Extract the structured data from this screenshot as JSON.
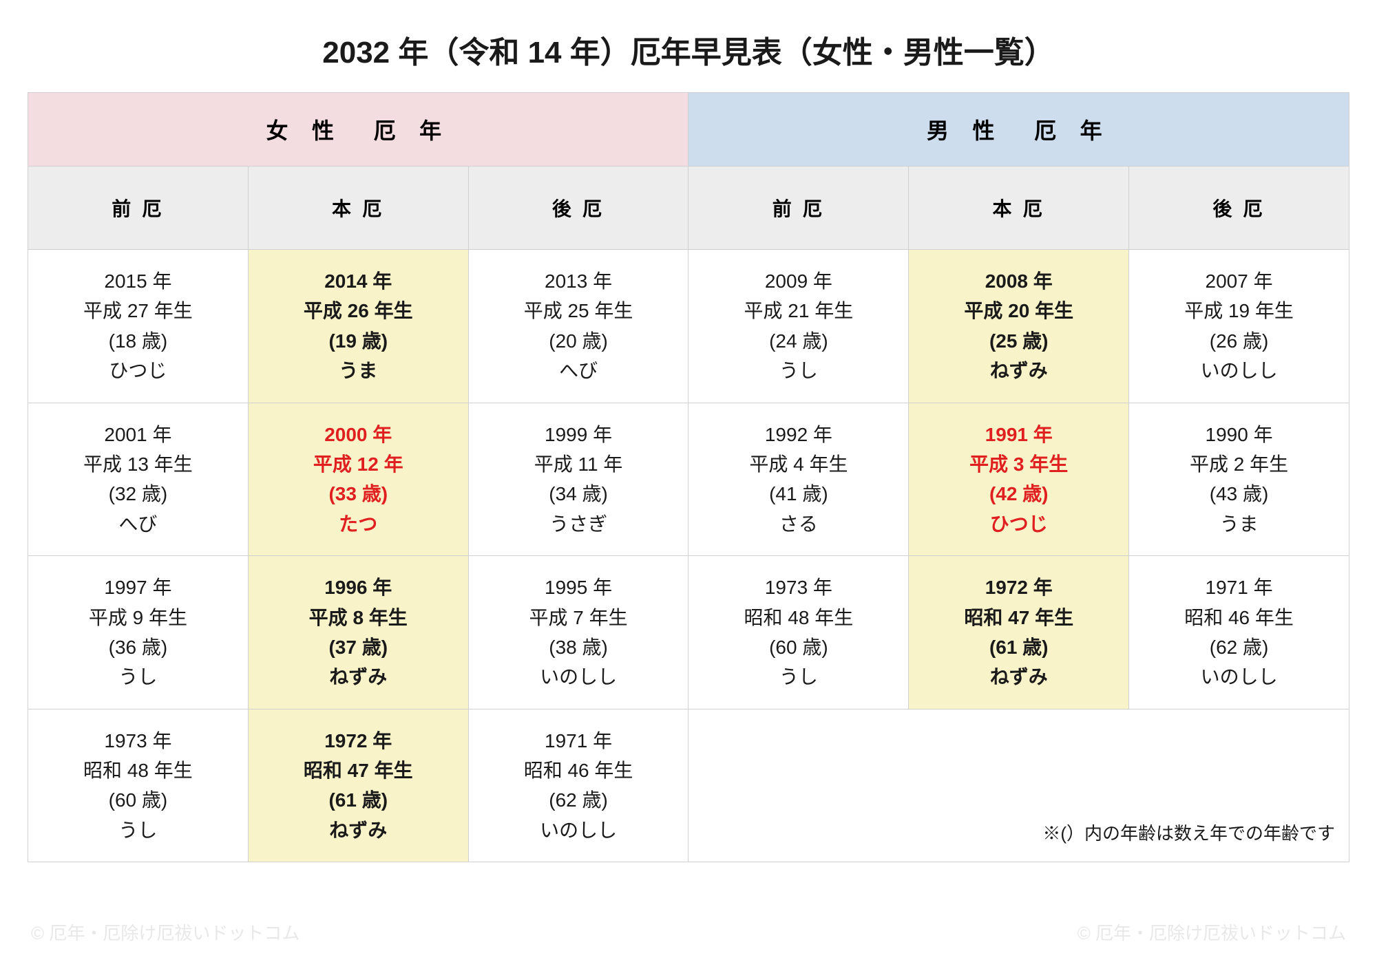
{
  "title": "2032 年（令和 14 年）厄年早見表（女性・男性一覧）",
  "headers": {
    "female": "女 性　厄 年",
    "male": "男 性　厄 年",
    "sub": [
      "前 厄",
      "本 厄",
      "後 厄",
      "前 厄",
      "本 厄",
      "後 厄"
    ]
  },
  "note": "※(）内の年齢は数え年での年齢です",
  "watermark": "© 厄年・厄除け厄祓いドットコム",
  "rows": [
    [
      {
        "year": "2015 年",
        "era": "平成 27 年生",
        "age": "(18 歳)",
        "zodiac": "ひつじ",
        "hl": false,
        "red": false
      },
      {
        "year": "2014 年",
        "era": "平成 26 年生",
        "age": "(19 歳)",
        "zodiac": "うま",
        "hl": true,
        "red": false
      },
      {
        "year": "2013 年",
        "era": "平成 25 年生",
        "age": "(20 歳)",
        "zodiac": "へび",
        "hl": false,
        "red": false
      },
      {
        "year": "2009 年",
        "era": "平成 21 年生",
        "age": "(24 歳)",
        "zodiac": "うし",
        "hl": false,
        "red": false
      },
      {
        "year": "2008 年",
        "era": "平成 20 年生",
        "age": "(25 歳)",
        "zodiac": "ねずみ",
        "hl": true,
        "red": false
      },
      {
        "year": "2007 年",
        "era": "平成 19 年生",
        "age": "(26 歳)",
        "zodiac": "いのしし",
        "hl": false,
        "red": false
      }
    ],
    [
      {
        "year": "2001 年",
        "era": "平成 13 年生",
        "age": "(32 歳)",
        "zodiac": "へび",
        "hl": false,
        "red": false
      },
      {
        "year": "2000 年",
        "era": "平成 12 年",
        "age": "(33 歳)",
        "zodiac": "たつ",
        "hl": true,
        "red": true
      },
      {
        "year": "1999 年",
        "era": "平成 11 年",
        "age": "(34 歳)",
        "zodiac": "うさぎ",
        "hl": false,
        "red": false
      },
      {
        "year": "1992 年",
        "era": "平成 4 年生",
        "age": "(41 歳)",
        "zodiac": "さる",
        "hl": false,
        "red": false
      },
      {
        "year": "1991 年",
        "era": "平成 3 年生",
        "age": "(42 歳)",
        "zodiac": "ひつじ",
        "hl": true,
        "red": true
      },
      {
        "year": "1990 年",
        "era": "平成 2 年生",
        "age": "(43 歳)",
        "zodiac": "うま",
        "hl": false,
        "red": false
      }
    ],
    [
      {
        "year": "1997 年",
        "era": "平成 9 年生",
        "age": "(36 歳)",
        "zodiac": "うし",
        "hl": false,
        "red": false
      },
      {
        "year": "1996 年",
        "era": "平成 8 年生",
        "age": "(37 歳)",
        "zodiac": "ねずみ",
        "hl": true,
        "red": false
      },
      {
        "year": "1995 年",
        "era": "平成 7 年生",
        "age": "(38 歳)",
        "zodiac": "いのしし",
        "hl": false,
        "red": false
      },
      {
        "year": "1973 年",
        "era": "昭和 48 年生",
        "age": "(60 歳)",
        "zodiac": "うし",
        "hl": false,
        "red": false
      },
      {
        "year": "1972 年",
        "era": "昭和 47 年生",
        "age": "(61 歳)",
        "zodiac": "ねずみ",
        "hl": true,
        "red": false
      },
      {
        "year": "1971 年",
        "era": "昭和 46 年生",
        "age": "(62 歳)",
        "zodiac": "いのしし",
        "hl": false,
        "red": false
      }
    ],
    [
      {
        "year": "1973 年",
        "era": "昭和 48 年生",
        "age": "(60 歳)",
        "zodiac": "うし",
        "hl": false,
        "red": false
      },
      {
        "year": "1972 年",
        "era": "昭和 47 年生",
        "age": "(61 歳)",
        "zodiac": "ねずみ",
        "hl": true,
        "red": false
      },
      {
        "year": "1971 年",
        "era": "昭和 46 年生",
        "age": "(62 歳)",
        "zodiac": "いのしし",
        "hl": false,
        "red": false
      }
    ]
  ],
  "colors": {
    "female_bg": "#f4dde0",
    "male_bg": "#cddded",
    "sub_bg": "#ededed",
    "highlight_bg": "#f9f3c9",
    "red_text": "#e02020",
    "border": "#d0d0d0",
    "text": "#1a1a1a",
    "watermark": "#e8e8e8"
  },
  "fontsize": {
    "title": 44,
    "gender": 32,
    "sub": 28,
    "cell": 28,
    "note": 26
  }
}
